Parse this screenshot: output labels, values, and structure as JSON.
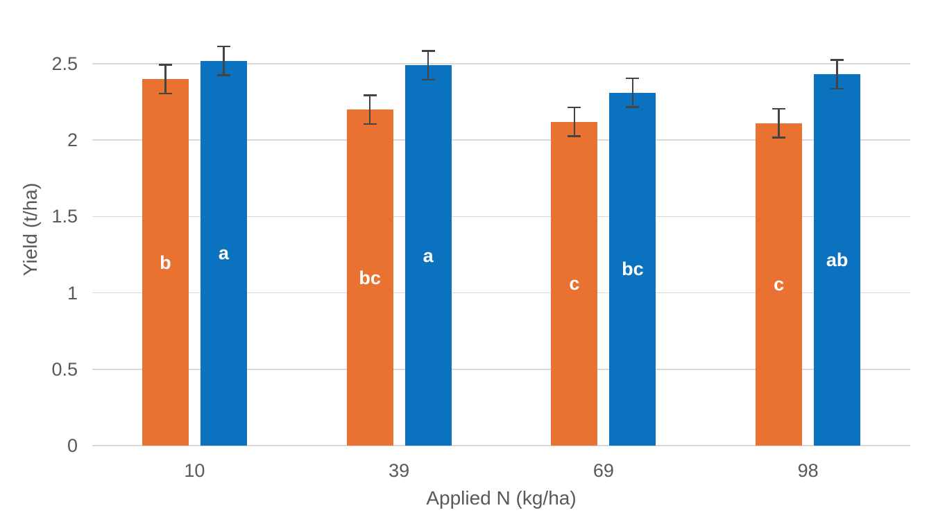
{
  "chart_data": {
    "type": "bar",
    "title": "",
    "xlabel": "Applied N (kg/ha)",
    "ylabel": "Yield (t/ha)",
    "categories": [
      "10",
      "39",
      "69",
      "98"
    ],
    "series": [
      {
        "name": "orange-series",
        "color": "#E97132",
        "values": [
          2.4,
          2.2,
          2.12,
          2.11
        ],
        "error_bars": [
          0.1,
          0.1,
          0.1,
          0.1
        ],
        "bar_letter_labels": [
          "b",
          "bc",
          "c",
          "c"
        ]
      },
      {
        "name": "blue-series",
        "color": "#0B72BF",
        "values": [
          2.52,
          2.49,
          2.31,
          2.43
        ],
        "error_bars": [
          0.1,
          0.1,
          0.1,
          0.1
        ],
        "bar_letter_labels": [
          "a",
          "a",
          "bc",
          "ab"
        ]
      }
    ],
    "ylim": [
      0,
      2.75
    ],
    "ytick_labels": [
      "0",
      "0.5",
      "1",
      "1.5",
      "2",
      "2.5"
    ],
    "grid": true,
    "legend_visible": false,
    "colors": {
      "axis_text": "#595959",
      "gridline": "#D9D9D9",
      "axis_line": "#D9D9D9",
      "error_bar": "#444444",
      "bar_label_text": "#FFFFFF",
      "background": "#FFFFFF"
    }
  }
}
